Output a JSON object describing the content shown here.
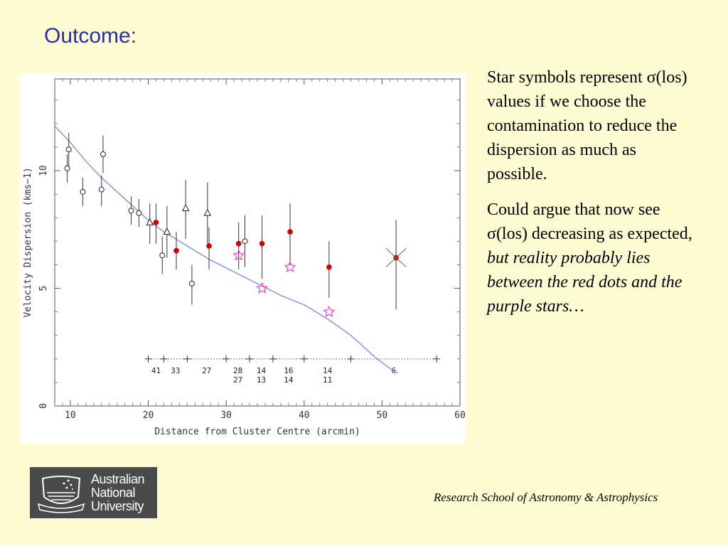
{
  "slide": {
    "title": "Outcome:",
    "paragraph1": "Star symbols represent σ(los) values if we choose the contamination to reduce the dispersion as much as possible.",
    "paragraph2_plain": "Could argue that now see σ(los) decreasing as expected, ",
    "paragraph2_italic": "but reality probably lies between the red dots and the purple stars…",
    "footer": "Research School of Astronomy & Astrophysics",
    "logo": {
      "line1": "Australian",
      "line2": "National",
      "line3": "University"
    }
  },
  "colors": {
    "background": "#fdfbd2",
    "title": "#2b2bb0",
    "red_points": "#cc0000",
    "stars": "#ff33cc",
    "model_curve": "#7b8ff0"
  },
  "chart_data": {
    "type": "scatter",
    "xlabel": "Distance from Cluster Centre (arcmin)",
    "ylabel": "Velocity Dispersion (kms−1)",
    "xlim": [
      8,
      60
    ],
    "ylim": [
      0,
      13.9
    ],
    "xticks": [
      10,
      20,
      30,
      40,
      50,
      60
    ],
    "yticks": [
      0,
      5,
      10
    ],
    "series": [
      {
        "marker": "circle",
        "points": [
          {
            "x": 9.6,
            "y": 10.1,
            "lo": 9.5,
            "hi": 10.7
          },
          {
            "x": 9.8,
            "y": 10.9,
            "lo": 10.2,
            "hi": 11.6
          },
          {
            "x": 11.6,
            "y": 9.1,
            "lo": 8.5,
            "hi": 9.7
          },
          {
            "x": 14.0,
            "y": 9.2,
            "lo": 8.5,
            "hi": 9.8
          },
          {
            "x": 14.2,
            "y": 10.7,
            "lo": 9.9,
            "hi": 11.5
          },
          {
            "x": 17.8,
            "y": 8.3,
            "lo": 7.7,
            "hi": 8.9
          },
          {
            "x": 18.8,
            "y": 8.2,
            "lo": 7.6,
            "hi": 8.8
          },
          {
            "x": 21.8,
            "y": 6.4,
            "lo": 5.6,
            "hi": 7.2
          },
          {
            "x": 25.6,
            "y": 5.2,
            "lo": 4.3,
            "hi": 6.0
          },
          {
            "x": 32.4,
            "y": 7.0,
            "lo": 5.9,
            "hi": 8.1
          }
        ]
      },
      {
        "marker": "triangle",
        "points": [
          {
            "x": 20.2,
            "y": 7.8,
            "lo": 6.9,
            "hi": 8.6
          },
          {
            "x": 22.4,
            "y": 7.4,
            "lo": 6.3,
            "hi": 8.5
          },
          {
            "x": 24.8,
            "y": 8.4,
            "lo": 7.1,
            "hi": 9.6
          },
          {
            "x": 27.6,
            "y": 8.2,
            "lo": 6.9,
            "hi": 9.5
          }
        ]
      },
      {
        "marker": "red-dot",
        "points": [
          {
            "x": 21.0,
            "y": 7.8,
            "lo": 6.9,
            "hi": 8.6
          },
          {
            "x": 23.6,
            "y": 6.6,
            "lo": 5.8,
            "hi": 7.4
          },
          {
            "x": 27.8,
            "y": 6.8,
            "lo": 5.8,
            "hi": 7.6
          },
          {
            "x": 31.6,
            "y": 6.9,
            "lo": 5.8,
            "hi": 7.8
          },
          {
            "x": 34.6,
            "y": 6.9,
            "lo": 5.4,
            "hi": 8.1
          },
          {
            "x": 38.2,
            "y": 7.4,
            "lo": 6.0,
            "hi": 8.6
          },
          {
            "x": 43.2,
            "y": 5.9,
            "lo": 4.6,
            "hi": 7.0
          },
          {
            "x": 51.8,
            "y": 6.3,
            "lo": 4.1,
            "hi": 7.9
          }
        ]
      },
      {
        "marker": "star",
        "points": [
          {
            "x": 31.6,
            "y": 6.4
          },
          {
            "x": 34.6,
            "y": 5.0
          },
          {
            "x": 38.2,
            "y": 5.9
          },
          {
            "x": 43.2,
            "y": 4.0
          }
        ]
      },
      {
        "marker": "cross",
        "points": [
          {
            "x": 51.8,
            "y": 6.3
          }
        ]
      }
    ],
    "model_curve": [
      {
        "x": 8.0,
        "y": 11.9
      },
      {
        "x": 10,
        "y": 11.2
      },
      {
        "x": 12,
        "y": 10.4
      },
      {
        "x": 14,
        "y": 9.7
      },
      {
        "x": 16,
        "y": 9.1
      },
      {
        "x": 18,
        "y": 8.5
      },
      {
        "x": 20,
        "y": 7.9
      },
      {
        "x": 22,
        "y": 7.4
      },
      {
        "x": 25,
        "y": 6.8
      },
      {
        "x": 28,
        "y": 6.2
      },
      {
        "x": 31,
        "y": 5.7
      },
      {
        "x": 34,
        "y": 5.2
      },
      {
        "x": 37,
        "y": 4.7
      },
      {
        "x": 40,
        "y": 4.3
      },
      {
        "x": 43,
        "y": 3.7
      },
      {
        "x": 46,
        "y": 3.0
      },
      {
        "x": 49,
        "y": 2.1
      },
      {
        "x": 51,
        "y": 1.6
      },
      {
        "x": 52,
        "y": 1.4
      }
    ],
    "bins": {
      "y": 2.0,
      "edges": [
        20,
        22,
        25,
        30,
        33,
        36,
        40,
        46,
        57
      ],
      "label_x": [
        21,
        23.5,
        27.5,
        31.5,
        34.5,
        38,
        43,
        51.5
      ],
      "counts_top": [
        "41",
        "33",
        "27",
        "28",
        "14",
        "16",
        "14",
        "6"
      ],
      "counts_bottom": [
        "",
        "",
        "",
        "27",
        "13",
        "14",
        "11",
        ""
      ]
    }
  }
}
